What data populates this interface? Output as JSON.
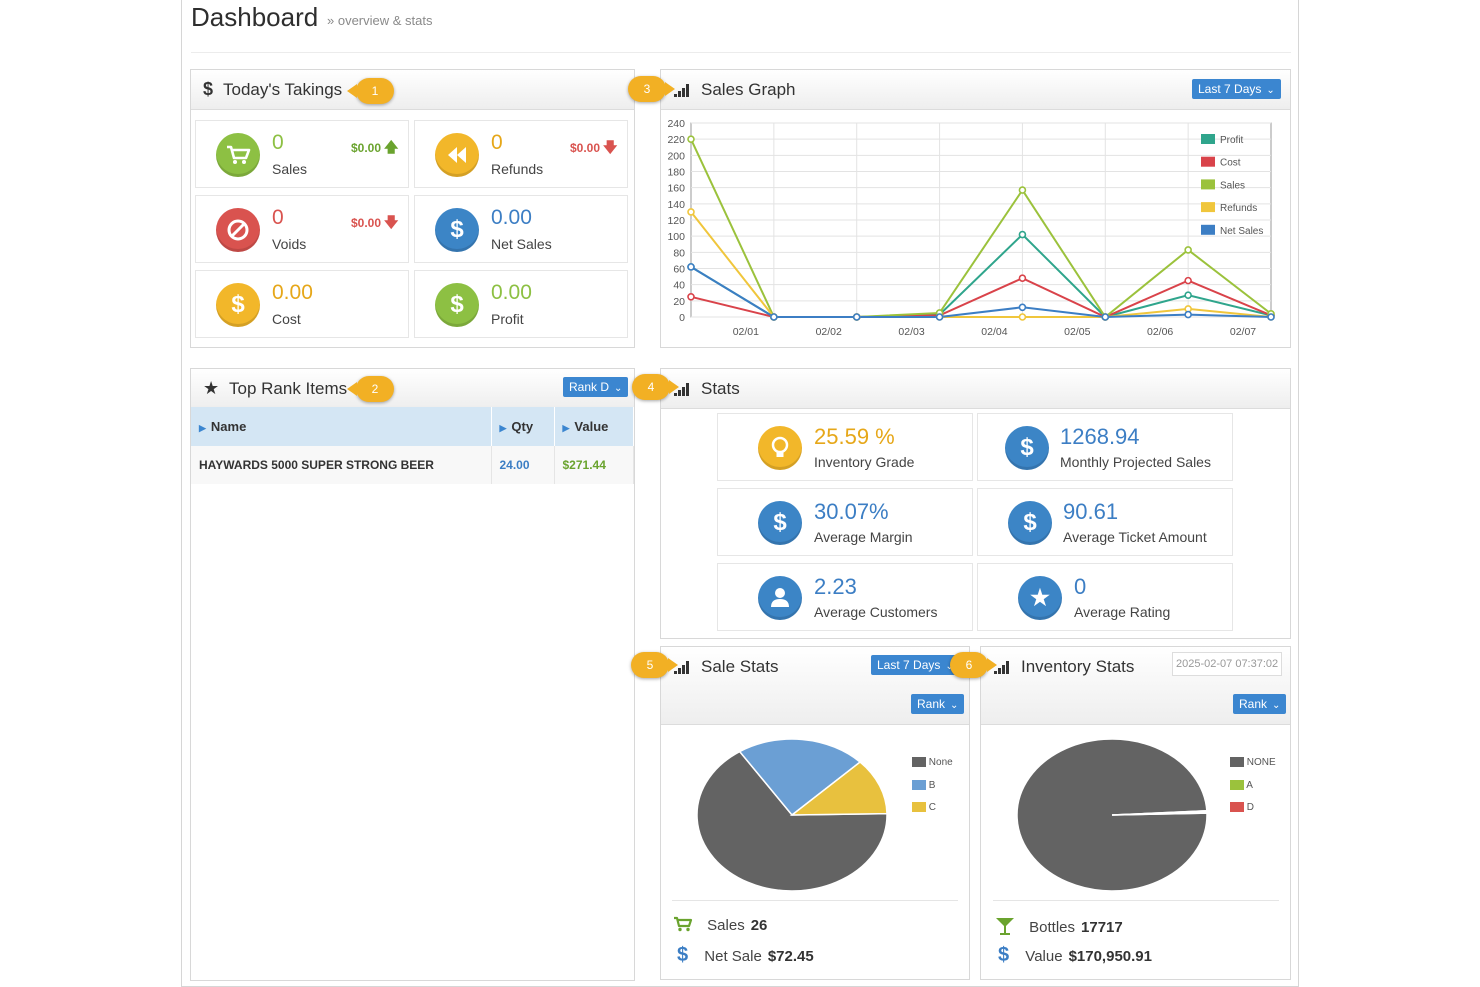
{
  "page": {
    "title": "Dashboard",
    "subtitle": "» overview & stats"
  },
  "badges": [
    "1",
    "2",
    "3",
    "4",
    "5",
    "6"
  ],
  "takings": {
    "title": "Today's Takings",
    "tiles": [
      {
        "value": "0",
        "label": "Sales",
        "change": "$0.00",
        "dir": "up"
      },
      {
        "value": "0",
        "label": "Refunds",
        "change": "$0.00",
        "dir": "down"
      },
      {
        "value": "0",
        "label": "Voids",
        "change": "$0.00",
        "dir": "down"
      },
      {
        "value": "0.00",
        "label": "Net Sales"
      },
      {
        "value": "0.00",
        "label": "Cost"
      },
      {
        "value": "0.00",
        "label": "Profit"
      }
    ]
  },
  "sales_graph": {
    "title": "Sales Graph",
    "range_button": "Last 7 Days"
  },
  "chart_data": {
    "type": "line",
    "x": [
      "",
      "02/01",
      "02/02",
      "02/03",
      "02/04",
      "02/05",
      "02/06",
      "02/07"
    ],
    "yticks": [
      "0",
      "20",
      "40",
      "60",
      "80",
      "100",
      "120",
      "140",
      "160",
      "180",
      "200",
      "220",
      "240"
    ],
    "ylim": [
      0,
      240
    ],
    "grid": true,
    "legend_position": "top-right",
    "series": [
      {
        "name": "Profit",
        "color": "#2fa58c",
        "values": [
          62,
          0,
          0,
          3,
          102,
          0,
          27,
          2
        ]
      },
      {
        "name": "Cost",
        "color": "#d9434a",
        "values": [
          25,
          0,
          0,
          2,
          48,
          0,
          45,
          2
        ]
      },
      {
        "name": "Sales",
        "color": "#9bc23c",
        "values": [
          220,
          0,
          0,
          5,
          157,
          0,
          83,
          4
        ]
      },
      {
        "name": "Refunds",
        "color": "#f0c63c",
        "values": [
          130,
          0,
          0,
          0,
          0,
          0,
          10,
          0
        ]
      },
      {
        "name": "Net Sales",
        "color": "#3c7ec4",
        "values": [
          62,
          0,
          0,
          0,
          12,
          0,
          3,
          0
        ]
      }
    ]
  },
  "top_rank": {
    "title": "Top Rank Items",
    "button": "Rank D",
    "columns": [
      "Name",
      "Qty",
      "Value"
    ],
    "rows": [
      {
        "name": "HAYWARDS 5000 SUPER STRONG BEER",
        "qty": "24.00",
        "value": "$271.44"
      }
    ]
  },
  "stats": {
    "title": "Stats",
    "tiles": [
      {
        "value": "25.59 %",
        "label": "Inventory Grade",
        "icon": "lightbulb-icon"
      },
      {
        "value": "1268.94",
        "label": "Monthly Projected Sales",
        "icon": "dollar-icon"
      },
      {
        "value": "30.07%",
        "label": "Average Margin",
        "icon": "dollar-icon"
      },
      {
        "value": "90.61",
        "label": "Average Ticket Amount",
        "icon": "dollar-icon"
      },
      {
        "value": "2.23",
        "label": "Average Customers",
        "icon": "user-icon"
      },
      {
        "value": "0",
        "label": "Average Rating",
        "icon": "star-icon"
      }
    ]
  },
  "sale_stats": {
    "title": "Sale Stats",
    "range_button": "Last 7 Days",
    "rank_button": "Rank",
    "pie": [
      {
        "name": "None",
        "value": 66,
        "color": "#636363"
      },
      {
        "name": "B",
        "value": 22,
        "color": "#6b9fd4"
      },
      {
        "name": "C",
        "value": 12,
        "color": "#e8c13e"
      }
    ],
    "footer": {
      "sales_label": "Sales",
      "sales_value": "26",
      "net_label": "Net Sale",
      "net_value": "$72.45"
    }
  },
  "inventory_stats": {
    "title": "Inventory Stats",
    "date": "2025-02-07 07:37:02",
    "rank_button": "Rank",
    "pie": [
      {
        "name": "NONE",
        "value": 99.5,
        "color": "#636363"
      },
      {
        "name": "A",
        "value": 0.3,
        "color": "#9bc23c"
      },
      {
        "name": "D",
        "value": 0.2,
        "color": "#d9534f"
      }
    ],
    "footer": {
      "bottles_label": "Bottles",
      "bottles_value": "17717",
      "value_label": "Value",
      "value_value": "$170,950.91"
    }
  }
}
